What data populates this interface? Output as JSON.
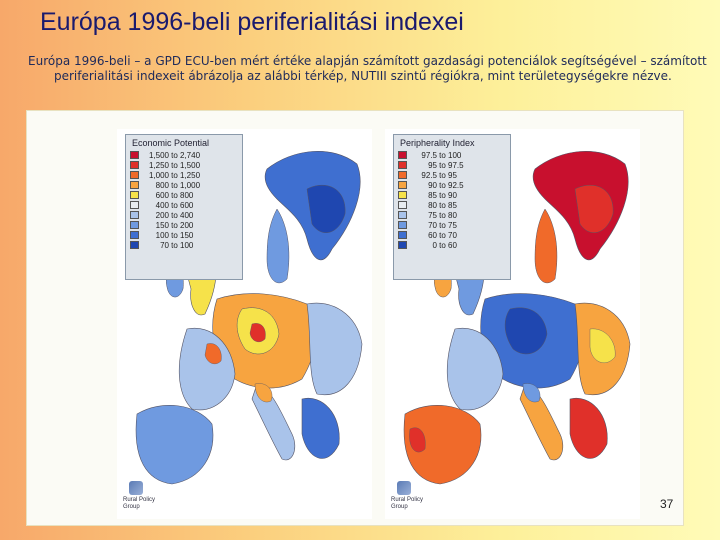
{
  "slide": {
    "title": "Európa 1996-beli periferialitási indexei",
    "body": "Európa 1996-beli – a GPD ECU-ben mért értéke alapján számított gazdasági potenciálok segítségével – számított periferialitási indexeit ábrázolja az alábbi térkép, NUTIII szintű régiókra, mint területegységekre nézve.",
    "page_number": "37"
  },
  "maps": {
    "economic": {
      "legend_title": "Economic Potential",
      "classes": [
        {
          "low": "1,500",
          "to": "to",
          "high": "2,740",
          "color": "#c8102e"
        },
        {
          "low": "1,250",
          "to": "to",
          "high": "1,500",
          "color": "#e0302a"
        },
        {
          "low": "1,000",
          "to": "to",
          "high": "1,250",
          "color": "#f06a2a"
        },
        {
          "low": "800",
          "to": "to",
          "high": "1,000",
          "color": "#f7a440"
        },
        {
          "low": "600",
          "to": "to",
          "high": "800",
          "color": "#f6e24a"
        },
        {
          "low": "400",
          "to": "to",
          "high": "600",
          "color": "#e8ecf0"
        },
        {
          "low": "200",
          "to": "to",
          "high": "400",
          "color": "#a9c3ea"
        },
        {
          "low": "150",
          "to": "to",
          "high": "200",
          "color": "#6f9ae0"
        },
        {
          "low": "100",
          "to": "to",
          "high": "150",
          "color": "#3f6fd0"
        },
        {
          "low": "70",
          "to": "to",
          "high": "100",
          "color": "#1f47b0"
        }
      ],
      "logo_text": "Rural Policy Group"
    },
    "periphery": {
      "legend_title": "Peripherality Index",
      "classes": [
        {
          "low": "97.5",
          "to": "to",
          "high": "100",
          "color": "#c8102e"
        },
        {
          "low": "95",
          "to": "to",
          "high": "97.5",
          "color": "#e0302a"
        },
        {
          "low": "92.5",
          "to": "to",
          "high": "95",
          "color": "#f06a2a"
        },
        {
          "low": "90",
          "to": "to",
          "high": "92.5",
          "color": "#f7a440"
        },
        {
          "low": "85",
          "to": "to",
          "high": "90",
          "color": "#f6e24a"
        },
        {
          "low": "80",
          "to": "to",
          "high": "85",
          "color": "#e8ecf0"
        },
        {
          "low": "75",
          "to": "to",
          "high": "80",
          "color": "#a9c3ea"
        },
        {
          "low": "70",
          "to": "to",
          "high": "75",
          "color": "#6f9ae0"
        },
        {
          "low": "60",
          "to": "to",
          "high": "70",
          "color": "#3f6fd0"
        },
        {
          "low": "0",
          "to": "to",
          "high": "60",
          "color": "#1f47b0"
        }
      ],
      "logo_text": "Rural Policy Group"
    }
  }
}
